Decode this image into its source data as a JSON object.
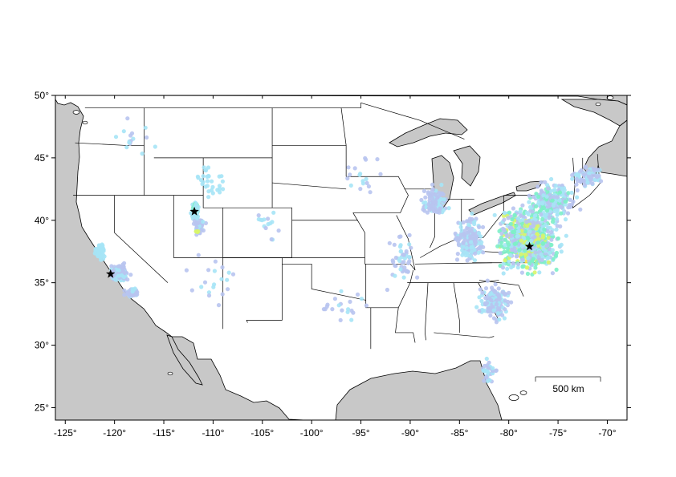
{
  "map": {
    "region": "contiguous-united-states",
    "lon_range": [
      -126,
      -68
    ],
    "lat_range": [
      24,
      50
    ],
    "ocean_color": "#c8c8c8",
    "land_color": "#ffffff",
    "border_color": "#000000",
    "x_ticks": [
      {
        "value": -125,
        "label": "-125°"
      },
      {
        "value": -120,
        "label": "-120°"
      },
      {
        "value": -115,
        "label": "-115°"
      },
      {
        "value": -110,
        "label": "-110°"
      },
      {
        "value": -105,
        "label": "-105°"
      },
      {
        "value": -100,
        "label": "-100°"
      },
      {
        "value": -95,
        "label": "-95°"
      },
      {
        "value": -90,
        "label": "-90°"
      },
      {
        "value": -85,
        "label": "-85°"
      },
      {
        "value": -80,
        "label": "-80°"
      },
      {
        "value": -75,
        "label": "-75°"
      },
      {
        "value": -70,
        "label": "-70°"
      }
    ],
    "y_ticks": [
      {
        "value": 50,
        "label": "50°"
      },
      {
        "value": 45,
        "label": "45°"
      },
      {
        "value": 40,
        "label": "40°"
      },
      {
        "value": 35,
        "label": "35°"
      },
      {
        "value": 30,
        "label": "30°"
      },
      {
        "value": 25,
        "label": "25°"
      }
    ],
    "scale_bar": {
      "label": "500 km",
      "length_km": 500
    }
  },
  "epicenters": [
    {
      "lon": -120.4,
      "lat": 35.7,
      "symbol": "star",
      "color": "#000000"
    },
    {
      "lon": -111.9,
      "lat": 40.7,
      "symbol": "star",
      "color": "#000000"
    },
    {
      "lon": -77.9,
      "lat": 37.9,
      "symbol": "star",
      "color": "#000000"
    }
  ],
  "intensity_colors": {
    "low": "#b8c4f0",
    "light": "#a6e4f6",
    "moderate": "#7ef0c8",
    "strong": "#d8f56a",
    "very_strong": "#ffe23a",
    "severe": "#ffa010"
  },
  "report_clusters": [
    {
      "lon": -77.8,
      "lat": 37.8,
      "spread_lon": 2.4,
      "spread_lat": 2.0,
      "count": 260,
      "levels": [
        "moderate",
        "strong",
        "very_strong",
        "severe"
      ]
    },
    {
      "lon": -78.0,
      "lat": 38.5,
      "spread_lon": 5.5,
      "spread_lat": 4.5,
      "count": 700,
      "levels": [
        "low",
        "light",
        "moderate",
        "strong"
      ]
    },
    {
      "lon": -75.5,
      "lat": 41.5,
      "spread_lon": 4.0,
      "spread_lat": 2.5,
      "count": 260,
      "levels": [
        "low",
        "light",
        "moderate"
      ]
    },
    {
      "lon": -81.5,
      "lat": 33.5,
      "spread_lon": 2.5,
      "spread_lat": 2.5,
      "count": 180,
      "levels": [
        "low",
        "light"
      ]
    },
    {
      "lon": -84.0,
      "lat": 38.5,
      "spread_lon": 2.5,
      "spread_lat": 3.0,
      "count": 180,
      "levels": [
        "low",
        "light"
      ]
    },
    {
      "lon": -87.5,
      "lat": 41.5,
      "spread_lon": 2.5,
      "spread_lat": 2.0,
      "count": 110,
      "levels": [
        "low",
        "light"
      ]
    },
    {
      "lon": -72.0,
      "lat": 43.5,
      "spread_lon": 2.5,
      "spread_lat": 1.5,
      "count": 90,
      "levels": [
        "low",
        "light"
      ]
    },
    {
      "lon": -82.0,
      "lat": 28.0,
      "spread_lon": 1.5,
      "spread_lat": 2.0,
      "count": 35,
      "levels": [
        "low",
        "light"
      ]
    },
    {
      "lon": -91.0,
      "lat": 37.0,
      "spread_lon": 3.0,
      "spread_lat": 4.0,
      "count": 45,
      "levels": [
        "low",
        "light"
      ]
    },
    {
      "lon": -111.8,
      "lat": 40.8,
      "spread_lon": 0.6,
      "spread_lat": 1.2,
      "count": 90,
      "levels": [
        "light",
        "moderate"
      ]
    },
    {
      "lon": -111.5,
      "lat": 39.5,
      "spread_lon": 1.0,
      "spread_lat": 1.2,
      "count": 45,
      "levels": [
        "low",
        "light"
      ]
    },
    {
      "lon": -111.6,
      "lat": 39.1,
      "spread_lon": 0.2,
      "spread_lat": 0.2,
      "count": 5,
      "levels": [
        "strong"
      ]
    },
    {
      "lon": -110.5,
      "lat": 43.0,
      "spread_lon": 3.0,
      "spread_lat": 2.5,
      "count": 30,
      "levels": [
        "light"
      ]
    },
    {
      "lon": -119.5,
      "lat": 35.8,
      "spread_lon": 1.6,
      "spread_lat": 1.2,
      "count": 160,
      "levels": [
        "low",
        "light"
      ]
    },
    {
      "lon": -121.5,
      "lat": 37.5,
      "spread_lon": 1.2,
      "spread_lat": 1.2,
      "count": 50,
      "levels": [
        "light"
      ]
    },
    {
      "lon": -118.2,
      "lat": 34.2,
      "spread_lon": 1.2,
      "spread_lat": 0.7,
      "count": 60,
      "levels": [
        "low",
        "light"
      ]
    },
    {
      "lon": -110.0,
      "lat": 35.0,
      "spread_lon": 5.0,
      "spread_lat": 4.0,
      "count": 20,
      "levels": [
        "low",
        "light"
      ]
    },
    {
      "lon": -97.0,
      "lat": 33.0,
      "spread_lon": 4.0,
      "spread_lat": 3.0,
      "count": 20,
      "levels": [
        "low",
        "light"
      ]
    },
    {
      "lon": -95.0,
      "lat": 44.0,
      "spread_lon": 4.0,
      "spread_lat": 3.0,
      "count": 18,
      "levels": [
        "low",
        "light"
      ]
    },
    {
      "lon": -118.0,
      "lat": 46.5,
      "spread_lon": 4.0,
      "spread_lat": 2.5,
      "count": 15,
      "levels": [
        "light",
        "low"
      ]
    },
    {
      "lon": -104.5,
      "lat": 39.5,
      "spread_lon": 3.0,
      "spread_lat": 3.0,
      "count": 15,
      "levels": [
        "light",
        "low"
      ]
    }
  ]
}
